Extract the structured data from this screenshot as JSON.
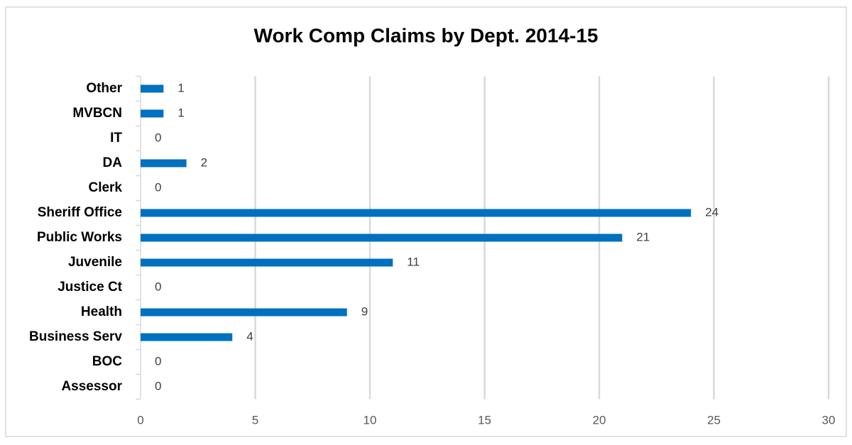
{
  "chart_data": {
    "type": "bar",
    "orientation": "horizontal",
    "title": "Work Comp Claims by Dept. 2014-15",
    "categories": [
      "Other",
      "MVBCN",
      "IT",
      "DA",
      "Clerk",
      "Sheriff Office",
      "Public Works",
      "Juvenile",
      "Justice Ct",
      "Health",
      "Business Serv",
      "BOC",
      "Assessor"
    ],
    "values": [
      1,
      1,
      0,
      2,
      0,
      24,
      21,
      11,
      0,
      9,
      4,
      0,
      0
    ],
    "color": "#0070c0",
    "xlim": [
      0,
      30
    ],
    "xticks": [
      0,
      5,
      10,
      15,
      20,
      25,
      30
    ],
    "grid": true
  }
}
